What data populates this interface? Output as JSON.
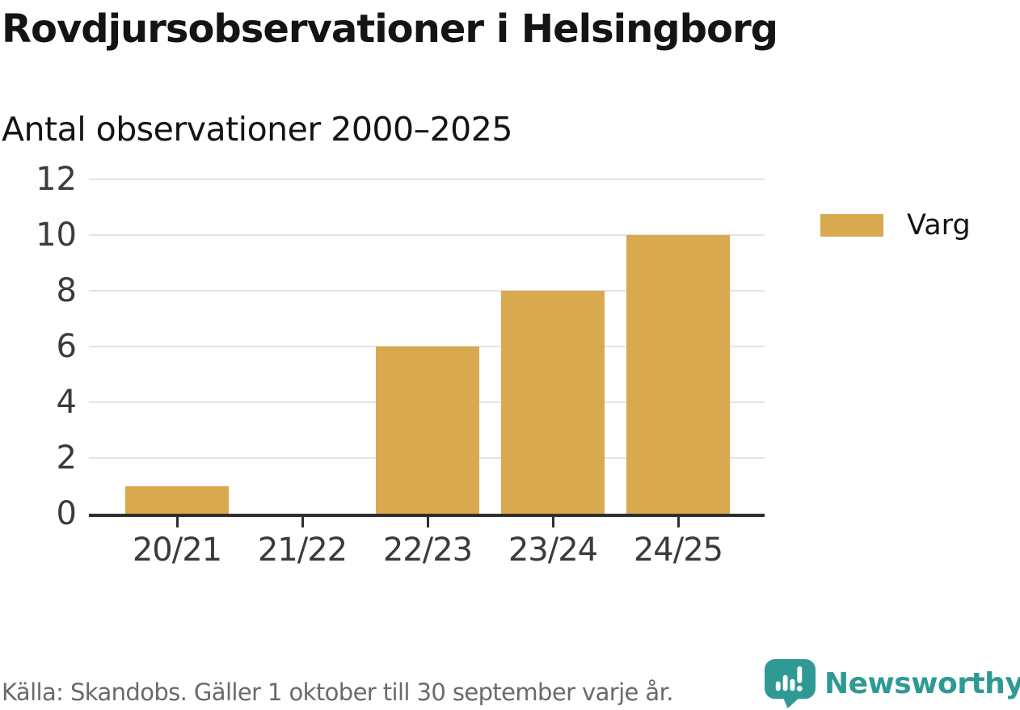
{
  "header": {
    "title": "Rovdjursobservationer i Helsingborg",
    "subtitle": "Antal observationer 2000–2025"
  },
  "chart_data": {
    "type": "bar",
    "title": "Rovdjursobservationer i Helsingborg",
    "subtitle": "Antal observationer 2000–2025",
    "categories": [
      "20/21",
      "21/22",
      "22/23",
      "23/24",
      "24/25"
    ],
    "series": [
      {
        "name": "Varg",
        "values": [
          1,
          0,
          6,
          8,
          10
        ],
        "color": "#D9A94F"
      }
    ],
    "xlabel": "",
    "ylabel": "",
    "ylim": [
      0,
      12
    ],
    "yticks": [
      0,
      2,
      4,
      6,
      8,
      10,
      12
    ],
    "grid": true,
    "legend_position": "right"
  },
  "legend": {
    "items": [
      {
        "label": "Varg",
        "color": "#D9A94F"
      }
    ]
  },
  "footer": {
    "source": "Källa: Skandobs. Gäller 1 oktober till 30 september varje år.",
    "brand": {
      "name": "Newsworthy",
      "color": "#2F9A94",
      "logo_icon": "newsworthy-speech-bubble-chart-icon"
    }
  }
}
